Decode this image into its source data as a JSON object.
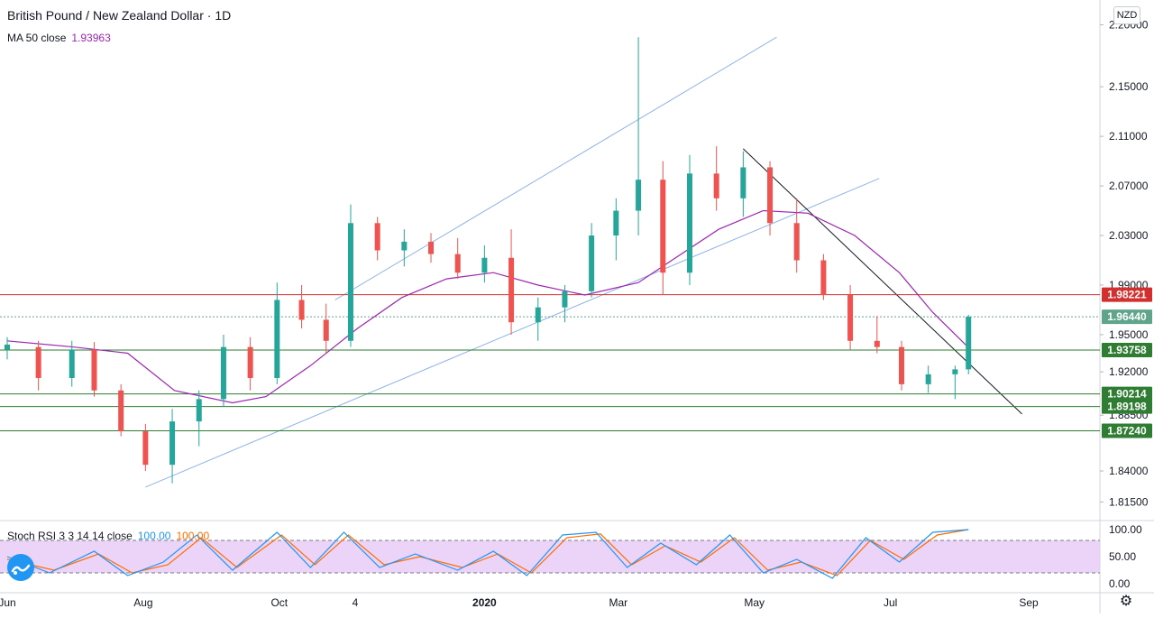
{
  "header": {
    "title": "British Pound / New Zealand Dollar · 1D",
    "ma_label": "MA 50 close",
    "ma_value": "1.93963"
  },
  "currency_button": "NZD",
  "stoch": {
    "label": "Stoch RSI 3 3 14 14 close",
    "k_value": "100.00",
    "d_value": "100.00",
    "ticks": [
      "100.00",
      "50.00",
      "0.00"
    ],
    "upper_band": 80,
    "lower_band": 20
  },
  "colors": {
    "up": "#26a69a",
    "down": "#ef5350",
    "ma": "#9c27b0",
    "channel": "#90b4e6",
    "trend": "#131722",
    "resistance": "#d32f2f",
    "support": "#2e7d32",
    "current": "#5fa58c",
    "k": "#2196f3",
    "d": "#ff6d00",
    "band": "#e6c4f5"
  },
  "chart_data": {
    "type": "candlestick",
    "title": "British Pound / New Zealand Dollar · 1D",
    "ylim": [
      1.8,
      2.22
    ],
    "price_ticks": [
      "2.20000",
      "2.15000",
      "2.11000",
      "2.07000",
      "2.03000",
      "1.99000",
      "1.95000",
      "1.92000",
      "1.88500",
      "1.84000",
      "1.81500"
    ],
    "x_labels": [
      "Jun",
      "Aug",
      "Oct",
      "4",
      "2020",
      "Mar",
      "May",
      "Jul",
      "Sep"
    ],
    "x_label_dates": [
      "2019-06-01",
      "2019-08-01",
      "2019-10-01",
      "2019-11-04",
      "2020-01-01",
      "2020-03-01",
      "2020-05-01",
      "2020-07-01",
      "2020-09-01"
    ],
    "x_range": [
      "2019-06-01",
      "2020-09-20"
    ],
    "candles": [
      {
        "d": "2019-06-01",
        "o": 1.938,
        "h": 1.948,
        "l": 1.93,
        "c": 1.942
      },
      {
        "d": "2019-06-15",
        "o": 1.94,
        "h": 1.945,
        "l": 1.905,
        "c": 1.915
      },
      {
        "d": "2019-06-30",
        "o": 1.915,
        "h": 1.945,
        "l": 1.908,
        "c": 1.938
      },
      {
        "d": "2019-07-10",
        "o": 1.938,
        "h": 1.944,
        "l": 1.9,
        "c": 1.905
      },
      {
        "d": "2019-07-22",
        "o": 1.905,
        "h": 1.91,
        "l": 1.868,
        "c": 1.872
      },
      {
        "d": "2019-08-02",
        "o": 1.872,
        "h": 1.878,
        "l": 1.84,
        "c": 1.845
      },
      {
        "d": "2019-08-14",
        "o": 1.845,
        "h": 1.89,
        "l": 1.83,
        "c": 1.88
      },
      {
        "d": "2019-08-26",
        "o": 1.88,
        "h": 1.905,
        "l": 1.86,
        "c": 1.898
      },
      {
        "d": "2019-09-06",
        "o": 1.898,
        "h": 1.95,
        "l": 1.892,
        "c": 1.94
      },
      {
        "d": "2019-09-18",
        "o": 1.94,
        "h": 1.948,
        "l": 1.905,
        "c": 1.915
      },
      {
        "d": "2019-09-30",
        "o": 1.915,
        "h": 1.992,
        "l": 1.91,
        "c": 1.978
      },
      {
        "d": "2019-10-11",
        "o": 1.978,
        "h": 1.99,
        "l": 1.955,
        "c": 1.962
      },
      {
        "d": "2019-10-22",
        "o": 1.962,
        "h": 1.975,
        "l": 1.935,
        "c": 1.945
      },
      {
        "d": "2019-11-02",
        "o": 1.945,
        "h": 2.055,
        "l": 1.94,
        "c": 2.04
      },
      {
        "d": "2019-11-14",
        "o": 2.04,
        "h": 2.045,
        "l": 2.01,
        "c": 2.018
      },
      {
        "d": "2019-11-26",
        "o": 2.018,
        "h": 2.035,
        "l": 2.005,
        "c": 2.025
      },
      {
        "d": "2019-12-08",
        "o": 2.025,
        "h": 2.032,
        "l": 2.008,
        "c": 2.015
      },
      {
        "d": "2019-12-20",
        "o": 2.015,
        "h": 2.028,
        "l": 1.995,
        "c": 2.0
      },
      {
        "d": "2020-01-01",
        "o": 2.0,
        "h": 2.022,
        "l": 1.992,
        "c": 2.012
      },
      {
        "d": "2020-01-13",
        "o": 2.012,
        "h": 2.035,
        "l": 1.95,
        "c": 1.96
      },
      {
        "d": "2020-01-25",
        "o": 1.96,
        "h": 1.98,
        "l": 1.945,
        "c": 1.972
      },
      {
        "d": "2020-02-06",
        "o": 1.972,
        "h": 1.99,
        "l": 1.96,
        "c": 1.985
      },
      {
        "d": "2020-02-18",
        "o": 1.985,
        "h": 2.04,
        "l": 1.98,
        "c": 2.03
      },
      {
        "d": "2020-02-29",
        "o": 2.03,
        "h": 2.06,
        "l": 2.01,
        "c": 2.05
      },
      {
        "d": "2020-03-10",
        "o": 2.05,
        "h": 2.19,
        "l": 2.03,
        "c": 2.075
      },
      {
        "d": "2020-03-21",
        "o": 2.075,
        "h": 2.09,
        "l": 1.982,
        "c": 2.0
      },
      {
        "d": "2020-04-02",
        "o": 2.0,
        "h": 2.095,
        "l": 1.99,
        "c": 2.08
      },
      {
        "d": "2020-04-14",
        "o": 2.08,
        "h": 2.102,
        "l": 2.05,
        "c": 2.06
      },
      {
        "d": "2020-04-26",
        "o": 2.06,
        "h": 2.098,
        "l": 2.045,
        "c": 2.085
      },
      {
        "d": "2020-05-08",
        "o": 2.085,
        "h": 2.09,
        "l": 2.03,
        "c": 2.04
      },
      {
        "d": "2020-05-20",
        "o": 2.04,
        "h": 2.06,
        "l": 2.0,
        "c": 2.01
      },
      {
        "d": "2020-06-01",
        "o": 2.01,
        "h": 2.015,
        "l": 1.978,
        "c": 1.982
      },
      {
        "d": "2020-06-13",
        "o": 1.982,
        "h": 1.99,
        "l": 1.938,
        "c": 1.945
      },
      {
        "d": "2020-06-25",
        "o": 1.945,
        "h": 1.965,
        "l": 1.935,
        "c": 1.94
      },
      {
        "d": "2020-07-06",
        "o": 1.94,
        "h": 1.945,
        "l": 1.905,
        "c": 1.91
      },
      {
        "d": "2020-07-18",
        "o": 1.91,
        "h": 1.925,
        "l": 1.903,
        "c": 1.918
      },
      {
        "d": "2020-07-30",
        "o": 1.918,
        "h": 1.925,
        "l": 1.898,
        "c": 1.922
      },
      {
        "d": "2020-08-05",
        "o": 1.922,
        "h": 1.966,
        "l": 1.918,
        "c": 1.9644
      }
    ],
    "ma50": [
      [
        "2019-06-01",
        1.945
      ],
      [
        "2019-07-01",
        1.94
      ],
      [
        "2019-07-25",
        1.935
      ],
      [
        "2019-08-15",
        1.905
      ],
      [
        "2019-09-10",
        1.895
      ],
      [
        "2019-09-25",
        1.9
      ],
      [
        "2019-10-15",
        1.925
      ],
      [
        "2019-11-05",
        1.955
      ],
      [
        "2019-11-25",
        1.98
      ],
      [
        "2019-12-15",
        1.995
      ],
      [
        "2020-01-05",
        2.0
      ],
      [
        "2020-01-25",
        1.99
      ],
      [
        "2020-02-15",
        1.982
      ],
      [
        "2020-03-10",
        1.992
      ],
      [
        "2020-03-25",
        2.01
      ],
      [
        "2020-04-15",
        2.035
      ],
      [
        "2020-05-05",
        2.05
      ],
      [
        "2020-05-25",
        2.048
      ],
      [
        "2020-06-15",
        2.03
      ],
      [
        "2020-07-05",
        2.0
      ],
      [
        "2020-07-20",
        1.968
      ],
      [
        "2020-08-05",
        1.93963
      ]
    ],
    "levels": [
      {
        "value": 1.98221,
        "label": "1.98221",
        "kind": "resistance"
      },
      {
        "value": 1.9644,
        "label": "1.96440",
        "kind": "current"
      },
      {
        "value": 1.93758,
        "label": "1.93758",
        "kind": "support"
      },
      {
        "value": 1.90214,
        "label": "1.90214",
        "kind": "support"
      },
      {
        "value": 1.89198,
        "label": "1.89198",
        "kind": "support"
      },
      {
        "value": 1.8724,
        "label": "1.87240",
        "kind": "support"
      }
    ],
    "trendlines": [
      {
        "kind": "channel",
        "from": [
          "2019-10-26",
          1.978
        ],
        "to": [
          "2020-05-11",
          2.19
        ]
      },
      {
        "kind": "channel",
        "from": [
          "2019-08-02",
          1.827
        ],
        "to": [
          "2020-06-26",
          2.076
        ]
      },
      {
        "kind": "trend",
        "from": [
          "2020-04-26",
          2.1
        ],
        "to": [
          "2020-08-29",
          1.886
        ]
      }
    ],
    "stoch_k": [
      [
        "2019-06-01",
        50
      ],
      [
        "2019-06-20",
        20
      ],
      [
        "2019-07-10",
        60
      ],
      [
        "2019-07-25",
        15
      ],
      [
        "2019-08-10",
        40
      ],
      [
        "2019-08-25",
        90
      ],
      [
        "2019-09-10",
        25
      ],
      [
        "2019-09-30",
        95
      ],
      [
        "2019-10-15",
        30
      ],
      [
        "2019-10-30",
        95
      ],
      [
        "2019-11-15",
        30
      ],
      [
        "2019-12-01",
        55
      ],
      [
        "2019-12-20",
        25
      ],
      [
        "2020-01-05",
        60
      ],
      [
        "2020-01-20",
        15
      ],
      [
        "2020-02-05",
        90
      ],
      [
        "2020-02-20",
        95
      ],
      [
        "2020-03-05",
        30
      ],
      [
        "2020-03-20",
        75
      ],
      [
        "2020-04-05",
        35
      ],
      [
        "2020-04-20",
        90
      ],
      [
        "2020-05-05",
        20
      ],
      [
        "2020-05-20",
        45
      ],
      [
        "2020-06-05",
        10
      ],
      [
        "2020-06-20",
        85
      ],
      [
        "2020-07-05",
        40
      ],
      [
        "2020-07-20",
        95
      ],
      [
        "2020-08-05",
        100
      ]
    ],
    "stoch_d": [
      [
        "2019-06-01",
        45
      ],
      [
        "2019-06-22",
        25
      ],
      [
        "2019-07-12",
        55
      ],
      [
        "2019-07-27",
        20
      ],
      [
        "2019-08-12",
        35
      ],
      [
        "2019-08-27",
        85
      ],
      [
        "2019-09-12",
        30
      ],
      [
        "2019-10-02",
        90
      ],
      [
        "2019-10-17",
        35
      ],
      [
        "2019-11-01",
        90
      ],
      [
        "2019-11-17",
        35
      ],
      [
        "2019-12-03",
        50
      ],
      [
        "2019-12-22",
        30
      ],
      [
        "2020-01-07",
        55
      ],
      [
        "2020-01-22",
        20
      ],
      [
        "2020-02-07",
        85
      ],
      [
        "2020-02-22",
        92
      ],
      [
        "2020-03-07",
        35
      ],
      [
        "2020-03-22",
        70
      ],
      [
        "2020-04-07",
        40
      ],
      [
        "2020-04-22",
        85
      ],
      [
        "2020-05-07",
        25
      ],
      [
        "2020-05-22",
        40
      ],
      [
        "2020-06-07",
        15
      ],
      [
        "2020-06-22",
        80
      ],
      [
        "2020-07-07",
        45
      ],
      [
        "2020-07-22",
        90
      ],
      [
        "2020-08-05",
        100
      ]
    ]
  }
}
